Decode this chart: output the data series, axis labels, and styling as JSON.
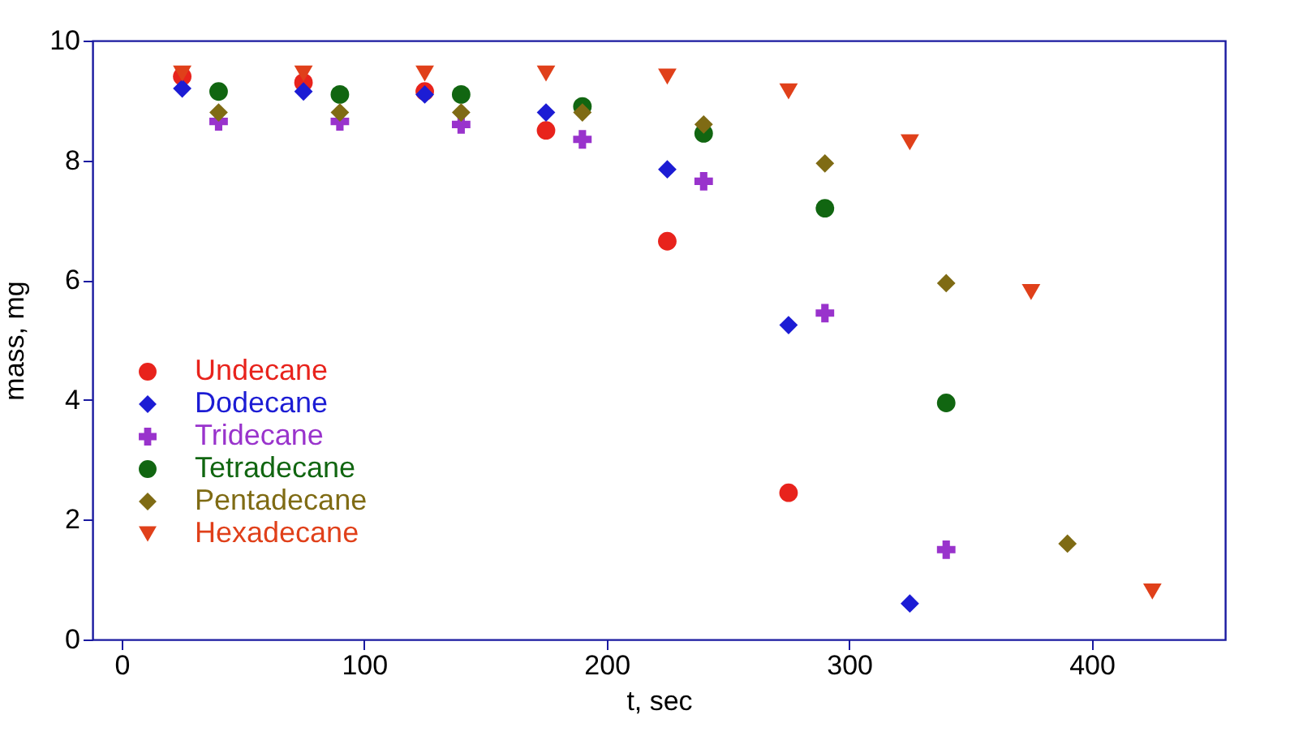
{
  "chart_data": {
    "type": "scatter",
    "xlabel": "t, sec",
    "ylabel": "mass, mg",
    "xlim": [
      -12,
      455
    ],
    "ylim": [
      0,
      10
    ],
    "xticks": [
      0,
      100,
      200,
      300,
      400
    ],
    "yticks": [
      0,
      2,
      4,
      6,
      8,
      10
    ],
    "legend": "bottom left",
    "grid": false,
    "series": [
      {
        "name": "Undecane",
        "color": "#e8231c",
        "marker": "circle",
        "x": [
          25,
          75,
          125,
          175,
          225,
          275
        ],
        "values": [
          9.4,
          9.3,
          9.15,
          8.5,
          6.65,
          2.45
        ]
      },
      {
        "name": "Dodecane",
        "color": "#1c1cd4",
        "marker": "diamond",
        "x": [
          25,
          75,
          125,
          175,
          225,
          275,
          325
        ],
        "values": [
          9.2,
          9.15,
          9.1,
          8.8,
          7.85,
          5.25,
          0.6
        ]
      },
      {
        "name": "Tridecane",
        "color": "#9933cc",
        "marker": "cross",
        "x": [
          40,
          90,
          140,
          190,
          240,
          290,
          340
        ],
        "values": [
          8.65,
          8.65,
          8.6,
          8.35,
          7.65,
          5.45,
          1.5
        ]
      },
      {
        "name": "Tetradecane",
        "color": "#116611",
        "marker": "circle",
        "x": [
          40,
          90,
          140,
          190,
          240,
          290,
          340
        ],
        "values": [
          9.15,
          9.1,
          9.1,
          8.9,
          8.45,
          7.2,
          3.95
        ]
      },
      {
        "name": "Pentadecane",
        "color": "#7f6b14",
        "marker": "diamond",
        "x": [
          40,
          90,
          140,
          190,
          240,
          290,
          340,
          390
        ],
        "values": [
          8.8,
          8.8,
          8.8,
          8.8,
          8.6,
          7.95,
          5.95,
          1.6
        ]
      },
      {
        "name": "Hexadecane",
        "color": "#e0401a",
        "marker": "triangle",
        "x": [
          25,
          75,
          125,
          175,
          225,
          275,
          325,
          375,
          425
        ],
        "values": [
          9.45,
          9.45,
          9.45,
          9.45,
          9.4,
          9.15,
          8.3,
          5.8,
          0.8
        ]
      }
    ]
  }
}
